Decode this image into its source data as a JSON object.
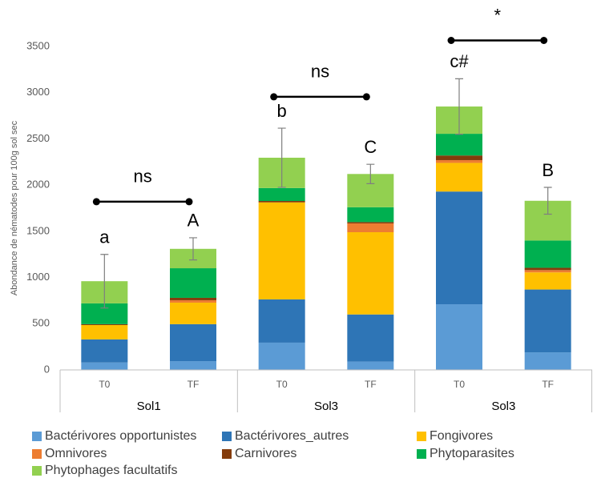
{
  "chart_data": {
    "type": "stacked_bar",
    "y_label": "Abondance de nématodes pour 100g sol sec",
    "categories": [
      "T0",
      "TF",
      "T0",
      "TF",
      "T0",
      "TF"
    ],
    "groups": [
      "Sol1",
      "Sol3",
      "Sol3"
    ],
    "series": [
      {
        "name": "Bactérivores opportunistes",
        "color": "#5b9bd5",
        "values": [
          80,
          95,
          295,
          90,
          710,
          190
        ]
      },
      {
        "name": "Bactérivores_autres",
        "color": "#2e75b6",
        "values": [
          250,
          400,
          468,
          510,
          1220,
          680
        ]
      },
      {
        "name": "Fongivores",
        "color": "#ffc000",
        "values": [
          155,
          233,
          1050,
          890,
          310,
          185
        ]
      },
      {
        "name": "Omnivores",
        "color": "#ed7d31",
        "values": [
          0,
          26,
          0,
          95,
          30,
          25
        ]
      },
      {
        "name": "Carnivores",
        "color": "#843c0c",
        "values": [
          10,
          26,
          15,
          15,
          50,
          25
        ]
      },
      {
        "name": "Phytoparasites",
        "color": "#00b050",
        "values": [
          225,
          320,
          140,
          160,
          235,
          295
        ]
      },
      {
        "name": "Phytophages facultatifs",
        "color": "#92d050",
        "values": [
          240,
          210,
          328,
          360,
          295,
          430
        ]
      }
    ],
    "errors": [
      290,
      120,
      320,
      105,
      300,
      145
    ],
    "bar_labels": [
      "a",
      "A",
      "b",
      "C",
      "c#",
      "B"
    ],
    "annotations": [
      {
        "text": "ns",
        "span": [
          0,
          1
        ],
        "y": 1820
      },
      {
        "text": "ns",
        "span": [
          2,
          3
        ],
        "y": 2955
      },
      {
        "text": "*",
        "span": [
          4,
          5
        ],
        "y": 3565
      }
    ],
    "ylim": [
      0,
      3500
    ],
    "yticks": [
      0,
      500,
      1000,
      1500,
      2000,
      2500,
      3000,
      3500
    ],
    "grid": false,
    "legend": "bottom"
  }
}
